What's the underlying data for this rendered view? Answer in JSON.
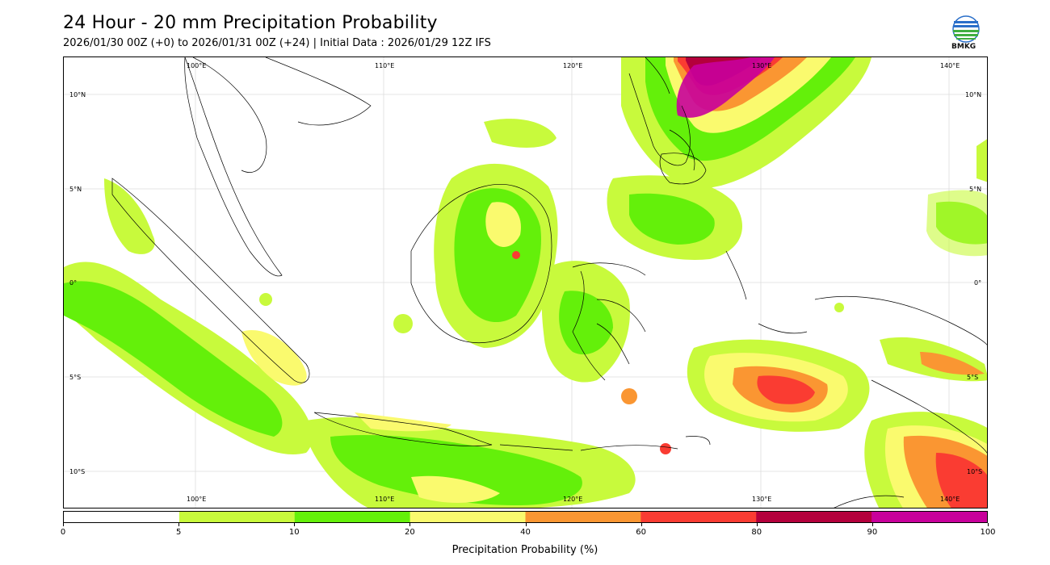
{
  "title": "24 Hour - 20 mm Precipitation Probability",
  "subtitle": "2026/01/30 00Z (+0) to 2026/01/31 00Z (+24) | Initial Data : 2026/01/29 12Z IFS",
  "logo": {
    "text": "BMKG",
    "icon": "bmkg-logo-icon"
  },
  "map": {
    "lon_labels": [
      "100°E",
      "110°E",
      "120°E",
      "130°E",
      "140°E"
    ],
    "lat_labels": [
      "10°N",
      "5°N",
      "0°",
      "5°S",
      "10°S"
    ]
  },
  "colorbar": {
    "title": "Precipitation Probability (%)",
    "ticks": [
      "0",
      "5",
      "10",
      "20",
      "40",
      "60",
      "80",
      "90",
      "100"
    ],
    "colors": [
      "#ffffff",
      "#c8fa3c",
      "#64f00a",
      "#fafa6e",
      "#fa9632",
      "#fa3c32",
      "#b4003c",
      "#c8009b"
    ]
  }
}
